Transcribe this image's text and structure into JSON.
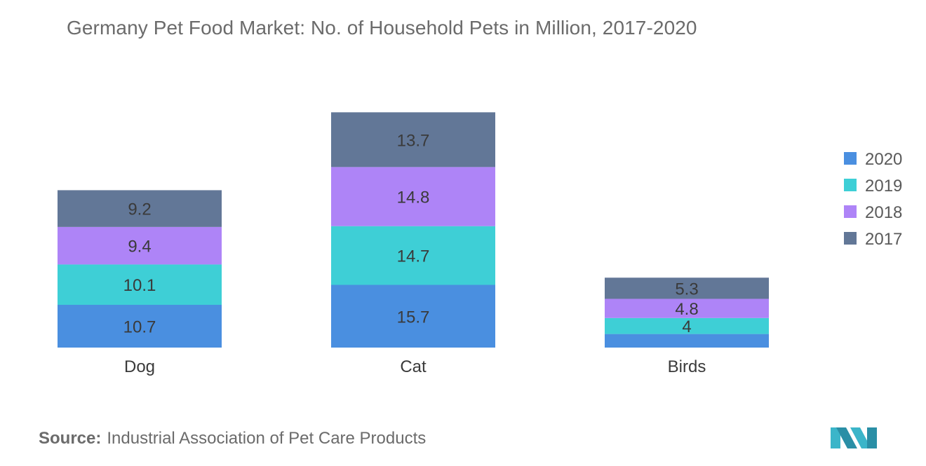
{
  "title": "Germany Pet Food Market: No. of Household Pets in Million, 2017-2020",
  "source": {
    "label": "Source:",
    "text": "Industrial Association of Pet Care Products"
  },
  "logo": {
    "icon": "company-logo-icon",
    "color": "#3bb5c9"
  },
  "chart_data": {
    "type": "bar",
    "stacked": true,
    "categories": [
      "Dog",
      "Cat",
      "Birds"
    ],
    "series": [
      {
        "name": "2020",
        "color": "#4a8fe0",
        "values": [
          10.7,
          15.7,
          3.4
        ],
        "labels": [
          "10.7",
          "15.7",
          ""
        ]
      },
      {
        "name": "2019",
        "color": "#3ecfd6",
        "values": [
          10.1,
          14.7,
          4.0
        ],
        "labels": [
          "10.1",
          "14.7",
          "4"
        ]
      },
      {
        "name": "2018",
        "color": "#ae84f7",
        "values": [
          9.4,
          14.8,
          4.8
        ],
        "labels": [
          "9.4",
          "14.8",
          "4.8"
        ]
      },
      {
        "name": "2017",
        "color": "#627797",
        "values": [
          9.2,
          13.7,
          5.3
        ],
        "labels": [
          "9.2",
          "13.7",
          "5.3"
        ]
      }
    ],
    "legend_order": [
      "2020",
      "2019",
      "2018",
      "2017"
    ],
    "legend_position": "right",
    "grid": false,
    "xlabel": "",
    "ylabel": ""
  }
}
